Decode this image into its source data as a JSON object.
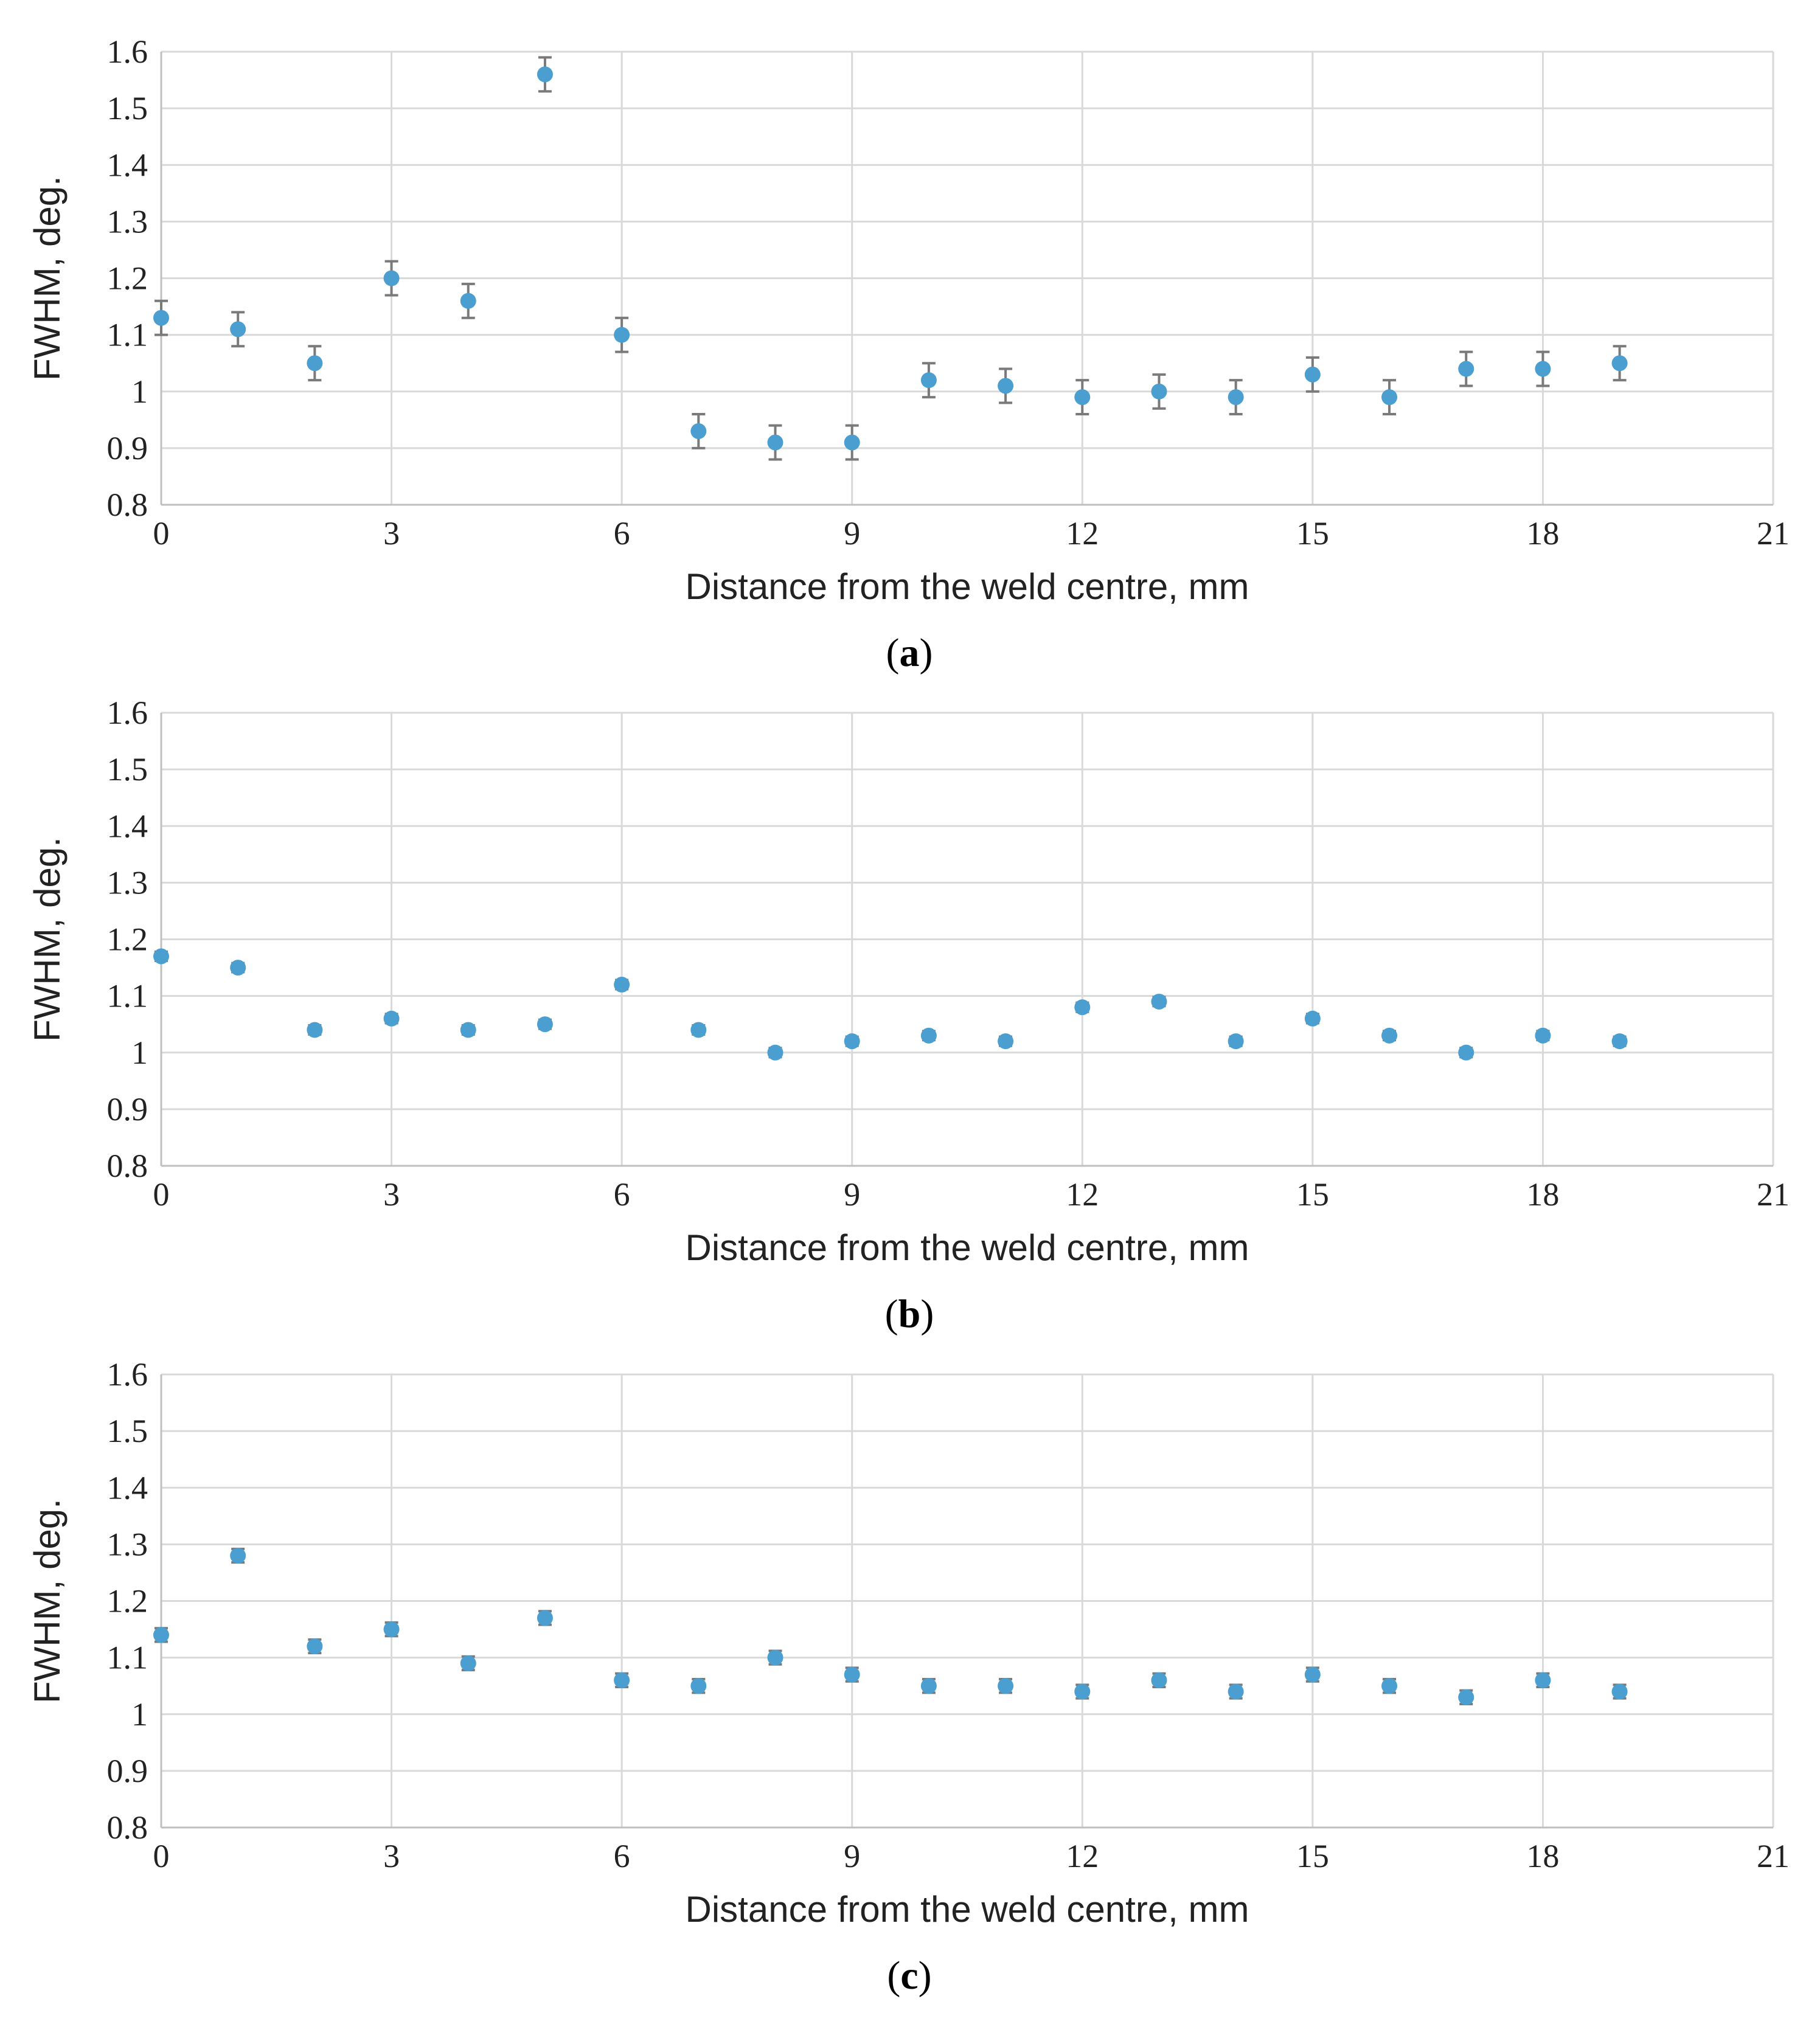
{
  "colors": {
    "marker": "#4a9fd0",
    "error_bar": "#7a7a7a",
    "grid": "#d9d9d9",
    "axis": "#bfbfbf"
  },
  "chart_data": [
    {
      "type": "scatter",
      "panel_label": "a",
      "xlabel": "Distance from the weld centre, mm",
      "ylabel": "FWHM, deg.",
      "xlim": [
        0,
        21
      ],
      "ylim": [
        0.8,
        1.6
      ],
      "xticks": [
        "0",
        "3",
        "6",
        "9",
        "12",
        "15",
        "18",
        "21"
      ],
      "yticks": [
        "0.8",
        "0.9",
        "1",
        "1.1",
        "1.2",
        "1.3",
        "1.4",
        "1.5",
        "1.6"
      ],
      "grid": true,
      "x": [
        0,
        1,
        2,
        3,
        4,
        5,
        6,
        7,
        8,
        9,
        10,
        11,
        12,
        13,
        14,
        15,
        16,
        17,
        18,
        19
      ],
      "y": [
        1.13,
        1.11,
        1.05,
        1.2,
        1.16,
        1.56,
        1.1,
        0.93,
        0.91,
        0.91,
        1.02,
        1.01,
        0.99,
        1.0,
        0.99,
        1.03,
        0.99,
        1.04,
        1.04,
        1.05
      ],
      "error": [
        0.03,
        0.03,
        0.03,
        0.03,
        0.03,
        0.03,
        0.03,
        0.03,
        0.03,
        0.03,
        0.03,
        0.03,
        0.03,
        0.03,
        0.03,
        0.03,
        0.03,
        0.03,
        0.03,
        0.03
      ]
    },
    {
      "type": "scatter",
      "panel_label": "b",
      "xlabel": "Distance from the weld centre, mm",
      "ylabel": "FWHM, deg.",
      "xlim": [
        0,
        21
      ],
      "ylim": [
        0.8,
        1.6
      ],
      "xticks": [
        "0",
        "3",
        "6",
        "9",
        "12",
        "15",
        "18",
        "21"
      ],
      "yticks": [
        "0.8",
        "0.9",
        "1",
        "1.1",
        "1.2",
        "1.3",
        "1.4",
        "1.5",
        "1.6"
      ],
      "grid": true,
      "x": [
        0,
        1,
        2,
        3,
        4,
        5,
        6,
        7,
        8,
        9,
        10,
        11,
        12,
        13,
        14,
        15,
        16,
        17,
        18,
        19
      ],
      "y": [
        1.17,
        1.15,
        1.04,
        1.06,
        1.04,
        1.05,
        1.12,
        1.04,
        1.0,
        1.02,
        1.03,
        1.02,
        1.08,
        1.09,
        1.02,
        1.06,
        1.03,
        1.0,
        1.03,
        1.02
      ],
      "error": [
        0.008,
        0.008,
        0.008,
        0.008,
        0.008,
        0.008,
        0.008,
        0.008,
        0.008,
        0.008,
        0.008,
        0.008,
        0.008,
        0.008,
        0.008,
        0.008,
        0.008,
        0.008,
        0.008,
        0.008
      ]
    },
    {
      "type": "scatter",
      "panel_label": "c",
      "xlabel": "Distance from the weld centre, mm",
      "ylabel": "FWHM, deg.",
      "xlim": [
        0,
        21
      ],
      "ylim": [
        0.8,
        1.6
      ],
      "xticks": [
        "0",
        "3",
        "6",
        "9",
        "12",
        "15",
        "18",
        "21"
      ],
      "yticks": [
        "0.8",
        "0.9",
        "1",
        "1.1",
        "1.2",
        "1.3",
        "1.4",
        "1.5",
        "1.6"
      ],
      "grid": true,
      "x": [
        0,
        1,
        2,
        3,
        4,
        5,
        6,
        7,
        8,
        9,
        10,
        11,
        12,
        13,
        14,
        15,
        16,
        17,
        18,
        19
      ],
      "y": [
        1.14,
        1.28,
        1.12,
        1.15,
        1.09,
        1.17,
        1.06,
        1.05,
        1.1,
        1.07,
        1.05,
        1.05,
        1.04,
        1.06,
        1.04,
        1.07,
        1.05,
        1.03,
        1.06,
        1.04
      ],
      "error": [
        0.012,
        0.012,
        0.012,
        0.012,
        0.012,
        0.012,
        0.012,
        0.012,
        0.012,
        0.012,
        0.012,
        0.012,
        0.012,
        0.012,
        0.012,
        0.012,
        0.012,
        0.012,
        0.012,
        0.012
      ]
    }
  ]
}
